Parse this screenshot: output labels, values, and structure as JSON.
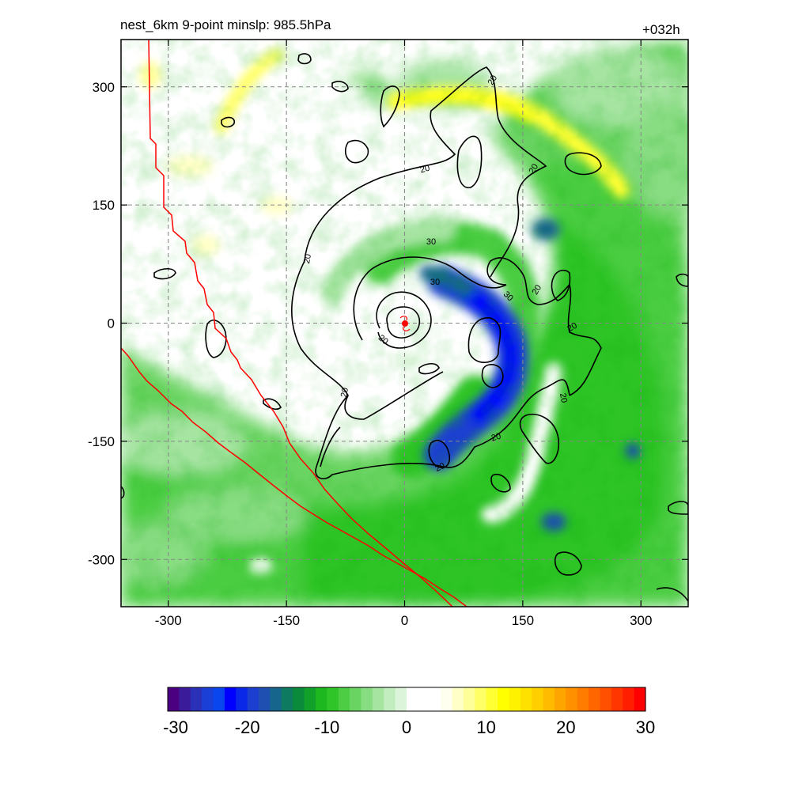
{
  "header": {
    "title_left": "nest_6km  9-point minslp: 985.5hPa",
    "title_right": "+032h"
  },
  "chart_data": {
    "type": "heatmap",
    "description_fields": {
      "shaded_field": "filled contour map (diverging green-white-yellow colormap)",
      "contour_field": "black contour lines",
      "boundary_lines": "red lines"
    },
    "x_ticks": [
      -300,
      -150,
      0,
      150,
      300
    ],
    "y_ticks": [
      300,
      150,
      0,
      -150,
      -300
    ],
    "xlim": [
      -360,
      360
    ],
    "ylim": [
      -360,
      360
    ],
    "grid": true,
    "contour_labels": [
      "20",
      "20",
      "20",
      "20",
      "20",
      "20",
      "20",
      "20",
      "30",
      "30",
      "30",
      "20",
      "20",
      "20"
    ],
    "storm_center": [
      0,
      0
    ],
    "colorbar": {
      "min": -30,
      "max": 30,
      "ticks": [
        -30,
        -20,
        -10,
        0,
        10,
        20,
        30
      ],
      "tick_labels": [
        "-30",
        "-20",
        "-10",
        "0",
        "10",
        "20",
        "30"
      ],
      "colors": [
        "#4b0082",
        "#3a1c9a",
        "#2a30b8",
        "#1a3fd6",
        "#0a46ee",
        "#0000ff",
        "#0a28e8",
        "#1d3fcf",
        "#1f4fb0",
        "#16658c",
        "#0e7a60",
        "#0b8a3c",
        "#11a02a",
        "#1db71f",
        "#2fc428",
        "#4ccd43",
        "#6ad462",
        "#88dc82",
        "#a6e4a2",
        "#c2edbf",
        "#dcf5da",
        "#ffffff",
        "#ffffff",
        "#ffffff",
        "#fffff0",
        "#ffffc8",
        "#ffff9a",
        "#ffff66",
        "#ffff33",
        "#ffff00",
        "#fff200",
        "#ffe100",
        "#ffcf00",
        "#ffbb00",
        "#ffa500",
        "#ff9000",
        "#ff7c00",
        "#ff6600",
        "#ff4f00",
        "#ff3600",
        "#ff1e00",
        "#ff0000"
      ]
    },
    "colors": {
      "green": "#2fc428",
      "light_green": "#a6e4a2",
      "blue": "#0a46ee",
      "yellow": "#ffff33",
      "contour": "#000000",
      "boundary": "#ff0000"
    }
  }
}
